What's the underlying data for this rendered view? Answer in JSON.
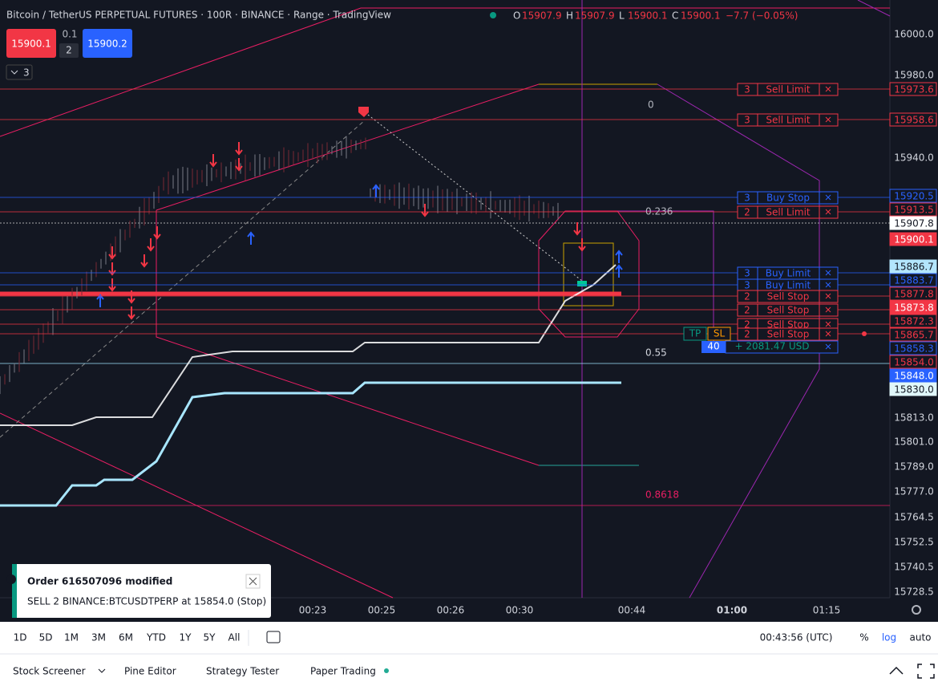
{
  "header": {
    "symbol": "Bitcoin / TetherUS PERPETUAL FUTURES · 100R · BINANCE · Range · TradingView",
    "ohlc": [
      {
        "key": "O",
        "value": "15907.9"
      },
      {
        "key": "H",
        "value": "15907.9"
      },
      {
        "key": "L",
        "value": "15900.1"
      },
      {
        "key": "C",
        "value": "15900.1"
      }
    ],
    "change": "−7.7 (−0.05%)"
  },
  "trade": {
    "sell": "15900.1",
    "step": "0.1",
    "qty": "2",
    "buy": "15900.2",
    "collapse": "3"
  },
  "price_axis": [
    "16000.0",
    "15980.0",
    "15940.0",
    "15813.0",
    "15801.0",
    "15789.0",
    "15777.0",
    "15764.5",
    "15752.5",
    "15740.5",
    "15728.5"
  ],
  "price_tags": [
    "15973.6",
    "15958.6",
    "15920.5",
    "15913.5",
    "15907.8",
    "15900.1",
    "15886.7",
    "15883.7",
    "15877.8",
    "15873.8",
    "15872.3",
    "15865.7",
    "15858.3",
    "15854.0",
    "15848.0",
    "15830.0"
  ],
  "orders": [
    {
      "qty": "3",
      "type": "Sell Limit"
    },
    {
      "qty": "3",
      "type": "Sell Limit"
    },
    {
      "qty": "3",
      "type": "Buy Stop"
    },
    {
      "qty": "2",
      "type": "Sell Limit"
    },
    {
      "qty": "3",
      "type": "Buy Limit"
    },
    {
      "qty": "3",
      "type": "Buy Limit"
    },
    {
      "qty": "2",
      "type": "Sell Stop"
    },
    {
      "qty": "2",
      "type": "Sell Stop"
    },
    {
      "qty": "2",
      "type": "Sell Stop"
    },
    {
      "qty": "2",
      "type": "Sell Stop"
    }
  ],
  "position": {
    "tp": "TP",
    "sl": "SL",
    "qty": "40",
    "pnl": "+ 2081.47 USD"
  },
  "fib": [
    "0",
    "0.236",
    "0.55",
    "0.8618"
  ],
  "time_axis": [
    "00:23",
    "00:25",
    "00:26",
    "00:30",
    "00:44",
    "01:00",
    "01:15"
  ],
  "toolbar": {
    "ranges": [
      "1D",
      "5D",
      "1M",
      "3M",
      "6M",
      "YTD",
      "1Y",
      "5Y",
      "All"
    ],
    "clock": "00:43:56 (UTC)",
    "percent": "%",
    "log": "log",
    "auto": "auto"
  },
  "tabs": [
    "Stock Screener",
    "Pine Editor",
    "Strategy Tester",
    "Paper Trading"
  ],
  "toast": {
    "title": "Order 616507096 modified",
    "body": "SELL 2 BINANCE:BTCUSDTPERP at 15854.0  (Stop)"
  }
}
